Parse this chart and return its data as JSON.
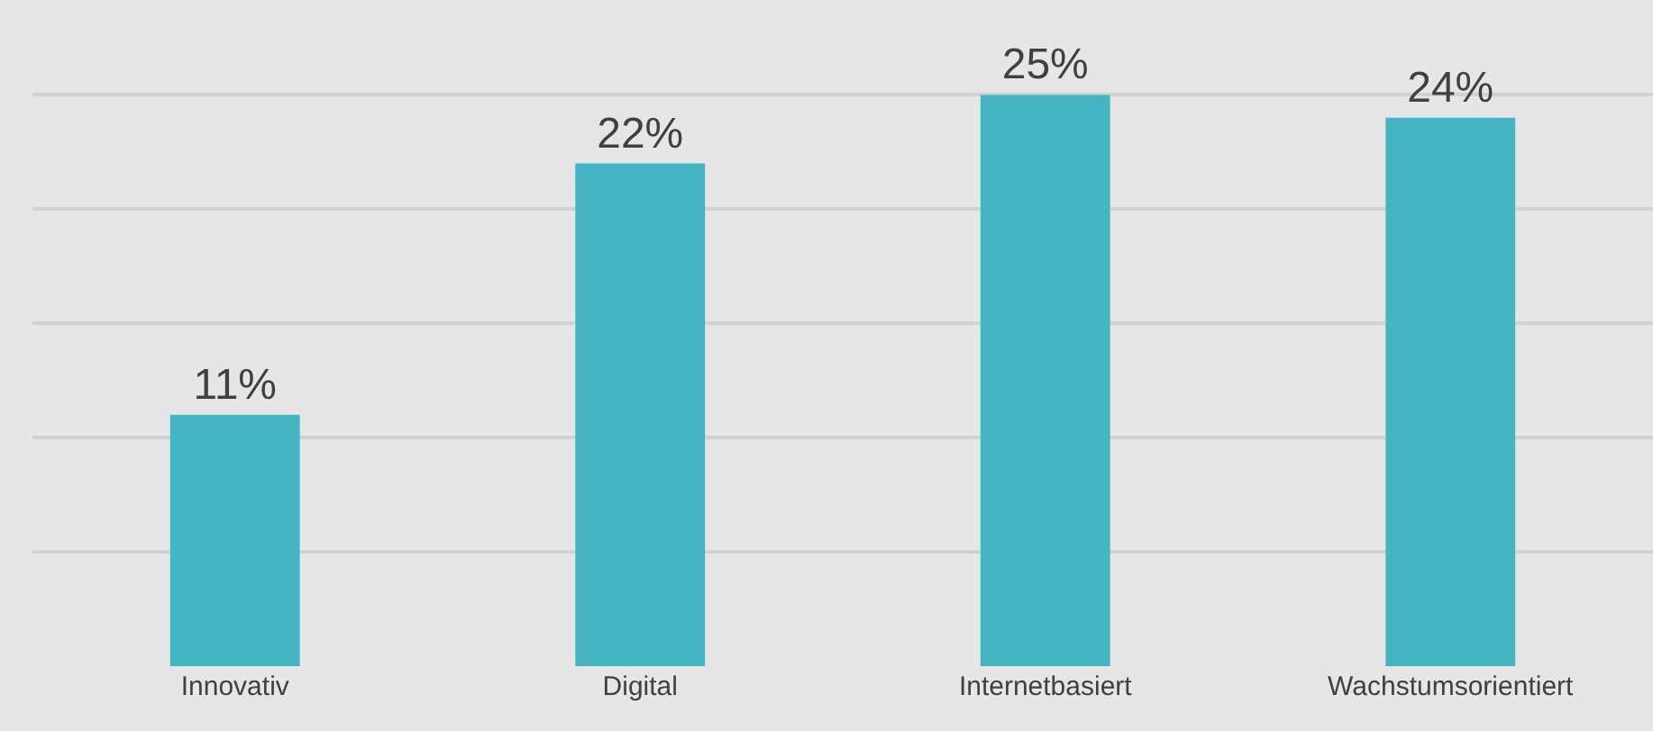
{
  "chart_data": {
    "type": "bar",
    "categories": [
      "Innovativ",
      "Digital",
      "Internetbasiert",
      "Wachstumsorientiert"
    ],
    "values": [
      11,
      22,
      25,
      24
    ],
    "value_labels": [
      "11%",
      "22%",
      "25%",
      "24%"
    ],
    "color": "#45b5c4",
    "tick_labels": "x",
    "grid": "y",
    "legend": false
  }
}
